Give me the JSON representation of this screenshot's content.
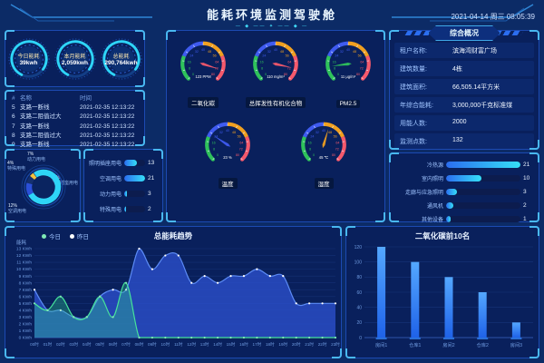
{
  "header": {
    "title": "能耗环境监测驾驶舱",
    "datetime": "2021-04-14 周三 08:05:39",
    "deco": "— ◆ —— ✦ —— ◆ —"
  },
  "kpis": [
    {
      "label": "今日能耗",
      "value": "39kwh"
    },
    {
      "label": "本月能耗",
      "value": "2,059kwh"
    },
    {
      "label": "总能耗",
      "value": "290,764kwh"
    }
  ],
  "alarms": {
    "columns": [
      "#",
      "名称",
      "时间"
    ],
    "rows": [
      [
        "5",
        "支路一断线",
        "2021-02-35 12:13:22"
      ],
      [
        "6",
        "支路二阻值过大",
        "2021-02-35 12:13:22"
      ],
      [
        "7",
        "支路一断线",
        "2021-02-35 12:13:22"
      ],
      [
        "8",
        "支路二阻值过大",
        "2021-02-35 12:13:22"
      ],
      [
        "9",
        "支路一断线",
        "2021-02-35 12:13:22"
      ]
    ]
  },
  "donut": {
    "slices": [
      {
        "label": "照明插座用电",
        "pct": 77,
        "pct_text": "77%",
        "color": "#2ed5f7"
      },
      {
        "label": "空调用电",
        "pct": 12,
        "pct_text": "12%",
        "color": "#2b50d8"
      },
      {
        "label": "动力用电",
        "pct": 7,
        "pct_text": "7%",
        "color": "#15306e"
      },
      {
        "label": "特殊用电",
        "pct": 4,
        "pct_text": "4%",
        "color": "#f2c23e"
      }
    ]
  },
  "energy_bars": {
    "max": 21,
    "items": [
      {
        "label": "照明插座用电",
        "value": 13
      },
      {
        "label": "空调用电",
        "value": 21
      },
      {
        "label": "动力用电",
        "value": 3
      },
      {
        "label": "特殊用电",
        "value": 2
      }
    ]
  },
  "gauges": {
    "min": 0,
    "max": 80,
    "tick_step": 8,
    "segment_colors": [
      "#2fc25b",
      "#3f5bf0",
      "#f0a020",
      "#f4596c"
    ],
    "items": [
      {
        "label": "二氧化碳",
        "value": "123 PPM",
        "needle": 0.9,
        "needle_color": "#f4596c"
      },
      {
        "label": "总挥发性有机化合物",
        "value": "110 mg/m³",
        "needle": 0.88,
        "needle_color": "#f4596c"
      },
      {
        "label": "PM2.5",
        "value": "11 μg/m³",
        "needle": 0.14,
        "needle_color": "#2fc25b"
      },
      {
        "label": "温度",
        "value": "23 %",
        "needle": 0.29,
        "needle_color": "#3f5bf0"
      },
      {
        "label": "湿度",
        "value": "45 ℃",
        "needle": 0.56,
        "needle_color": "#f0a020"
      }
    ]
  },
  "overview": {
    "title": "综合概况",
    "rows": [
      {
        "label": "租户名称:",
        "value": "滨海湾财富广场"
      },
      {
        "label": "建筑数量:",
        "value": "4栋"
      },
      {
        "label": "建筑面积:",
        "value": "66,505.14平方米"
      },
      {
        "label": "年综合能耗:",
        "value": "3,000,000千克标准煤"
      },
      {
        "label": "用能人数:",
        "value": "2000"
      },
      {
        "label": "监测点数:",
        "value": "132"
      }
    ]
  },
  "device_bars": {
    "max": 21,
    "items": [
      {
        "label": "冷热源",
        "value": 21
      },
      {
        "label": "室内照明",
        "value": 10
      },
      {
        "label": "走廊与应急照明",
        "value": 3
      },
      {
        "label": "通风机",
        "value": 2
      },
      {
        "label": "其他设备",
        "value": 1
      }
    ]
  },
  "chart_data": [
    {
      "type": "area",
      "title": "总能耗趋势",
      "ylabel": "能耗",
      "ylim": [
        0,
        13
      ],
      "ytick_step": 1,
      "ytick_suffix": " KWh",
      "grid": true,
      "legend_position": "top-left",
      "x": [
        "00时",
        "01时",
        "02时",
        "03时",
        "04时",
        "05时",
        "06时",
        "07时",
        "08时",
        "09时",
        "10时",
        "11时",
        "12时",
        "13时",
        "14时",
        "15时",
        "16时",
        "17时",
        "18时",
        "19时",
        "20时",
        "21时",
        "22时",
        "23时"
      ],
      "series": [
        {
          "name": "今日",
          "color": "#46e39b",
          "fill": "rgba(46,200,140,0.35)",
          "dot": "#7fe9b5",
          "values": [
            5,
            4,
            6,
            3,
            3,
            6,
            3,
            8,
            0,
            0,
            0,
            0,
            0,
            0,
            0,
            0,
            0,
            0,
            0,
            0,
            0,
            0,
            0,
            0
          ]
        },
        {
          "name": "昨日",
          "color": "#5b8af5",
          "fill": "rgba(43,80,205,0.78)",
          "dot": "#ffffff",
          "values": [
            7,
            4,
            4,
            3,
            3,
            6,
            7,
            7,
            13,
            10,
            12,
            12,
            8,
            9,
            8,
            9,
            9,
            10,
            9,
            9,
            5,
            5,
            5,
            5
          ]
        }
      ]
    },
    {
      "type": "bar",
      "title": "二氧化碳前10名",
      "ylim": [
        0,
        120
      ],
      "ytick_step": 20,
      "grid": true,
      "bar_color": "#2f7ff2",
      "categories": [
        "房间1",
        "仓库1",
        "房间2",
        "仓库2",
        "房间3"
      ],
      "values": [
        120,
        100,
        80,
        60,
        20
      ]
    }
  ]
}
